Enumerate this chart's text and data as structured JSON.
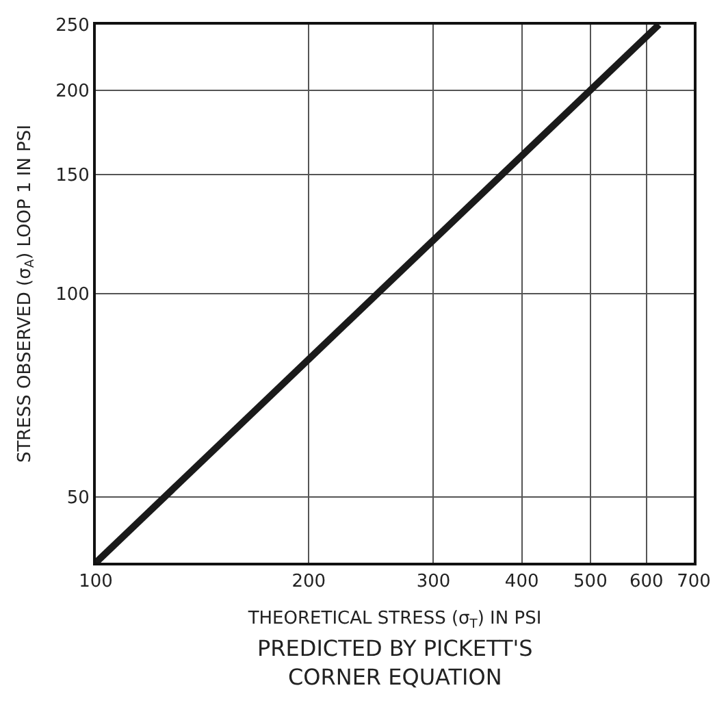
{
  "chart_data": {
    "type": "line",
    "xlabel": "THEORETICAL STRESS (σ$_{T}$) IN PSI",
    "ylabel": "STRESS OBSERVED (σ$_{A}$) LOOP 1 IN PSI",
    "annotations": [
      "PREDICTED BY PICKETT'S\nCORNER EQUATION"
    ],
    "log": "xy",
    "xlim": [
      100,
      700
    ],
    "ylim": [
      40,
      250
    ],
    "xticks": [
      100,
      200,
      300,
      400,
      500,
      600,
      700
    ],
    "yticks": [
      50,
      100,
      150,
      200,
      250
    ],
    "grid": true,
    "line_style": "solid",
    "marker": "none",
    "series": [
      {
        "color": "#1a1a1a",
        "x": [
          100,
          625
        ],
        "values": [
          40,
          250
        ]
      }
    ]
  }
}
